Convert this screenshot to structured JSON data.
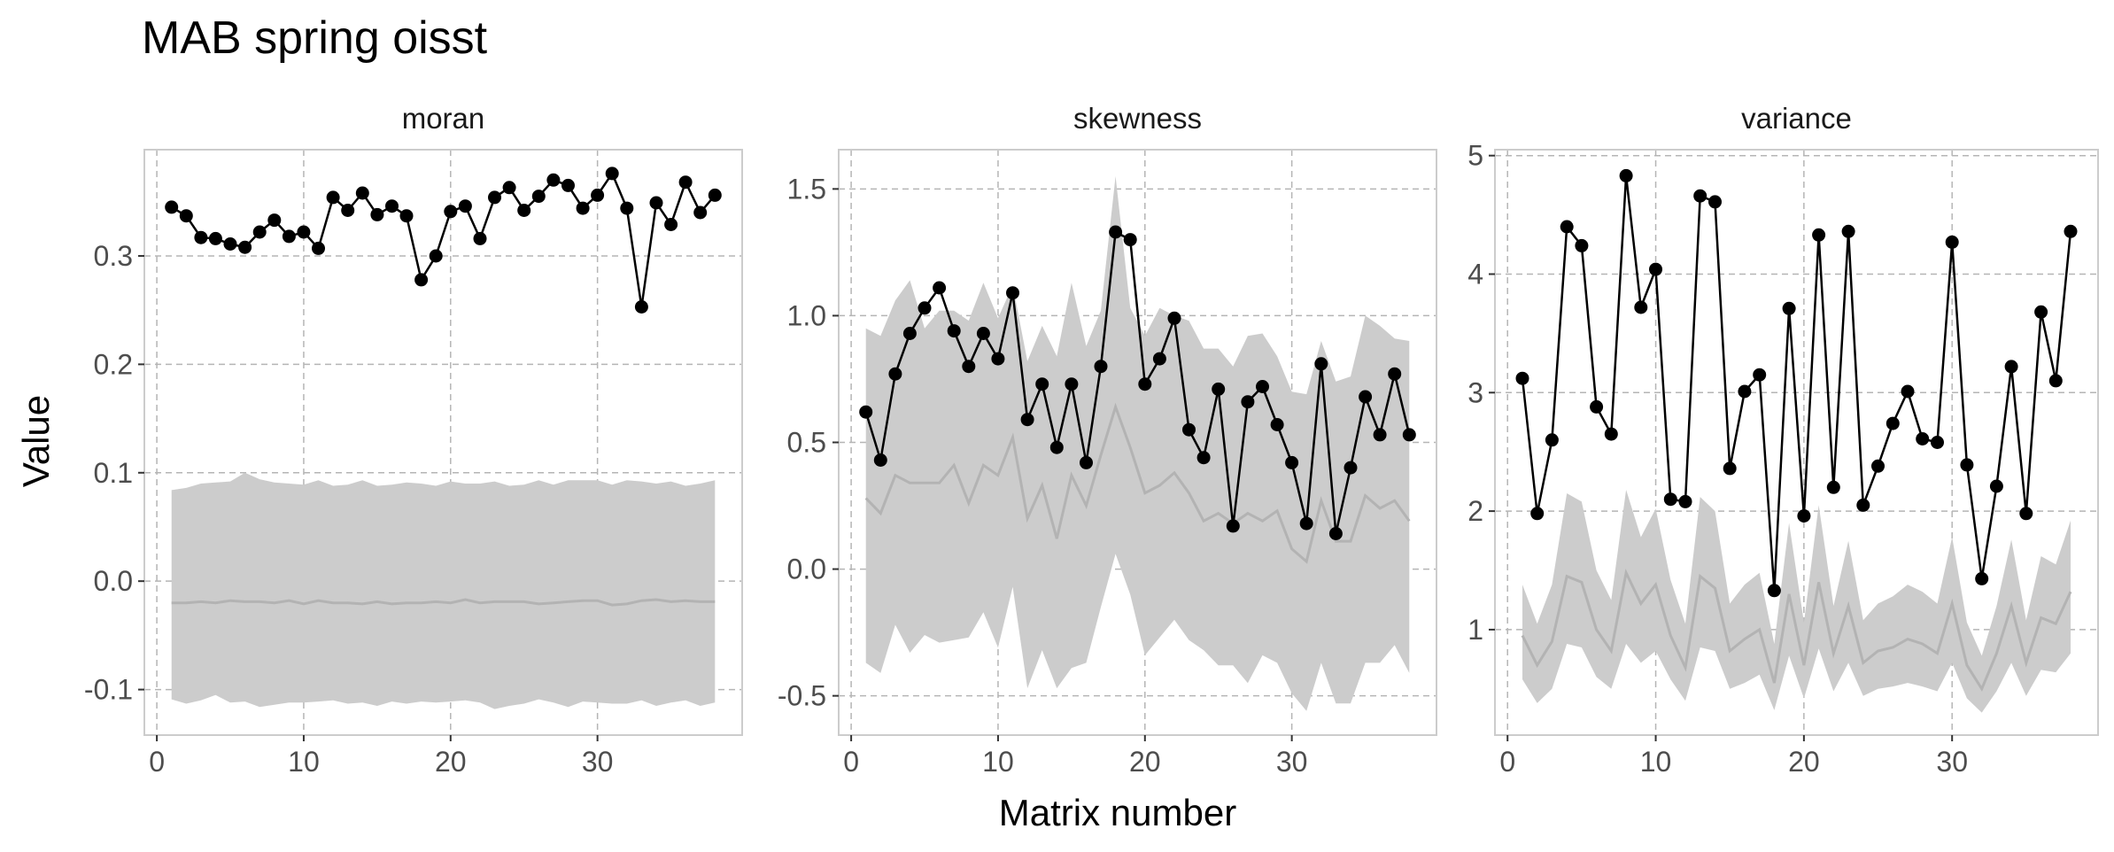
{
  "title": "MAB spring oisst",
  "xlabel": "Matrix number",
  "ylabel": "Value",
  "colors": {
    "point": "#000000",
    "line": "#000000",
    "ribbon": "#cccccc",
    "mean_line": "#b3b3b3",
    "grid": "#b5b5b5",
    "panel_border": "#cccccc",
    "tick_text": "#4d4d4d"
  },
  "chart_data": [
    {
      "type": "line",
      "panel": "moran",
      "x_ticks": [
        0,
        10,
        20,
        30
      ],
      "y_ticks": [
        -0.1,
        0.0,
        0.1,
        0.2,
        0.3
      ],
      "y_tick_labels": [
        "-0.1",
        "0.0",
        "0.1",
        "0.2",
        "0.3"
      ],
      "xlim": [
        -0.85,
        39.85
      ],
      "ylim": [
        -0.142,
        0.398
      ],
      "x": [
        1,
        2,
        3,
        4,
        5,
        6,
        7,
        8,
        9,
        10,
        11,
        12,
        13,
        14,
        15,
        16,
        17,
        18,
        19,
        20,
        21,
        22,
        23,
        24,
        25,
        26,
        27,
        28,
        29,
        30,
        31,
        32,
        33,
        34,
        35,
        36,
        37,
        38
      ],
      "observed": [
        0.345,
        0.337,
        0.317,
        0.316,
        0.311,
        0.308,
        0.322,
        0.333,
        0.318,
        0.322,
        0.307,
        0.354,
        0.342,
        0.358,
        0.338,
        0.346,
        0.337,
        0.278,
        0.3,
        0.341,
        0.346,
        0.316,
        0.354,
        0.363,
        0.342,
        0.355,
        0.37,
        0.365,
        0.344,
        0.356,
        0.376,
        0.344,
        0.253,
        0.349,
        0.329,
        0.368,
        0.34,
        0.356
      ],
      "mean": [
        -0.02,
        -0.02,
        -0.019,
        -0.02,
        -0.018,
        -0.019,
        -0.019,
        -0.02,
        -0.018,
        -0.021,
        -0.018,
        -0.02,
        -0.02,
        -0.021,
        -0.019,
        -0.021,
        -0.02,
        -0.02,
        -0.019,
        -0.02,
        -0.017,
        -0.02,
        -0.019,
        -0.019,
        -0.019,
        -0.021,
        -0.02,
        -0.019,
        -0.018,
        -0.018,
        -0.022,
        -0.021,
        -0.018,
        -0.017,
        -0.019,
        -0.018,
        -0.019,
        -0.019
      ],
      "lower": [
        -0.109,
        -0.113,
        -0.11,
        -0.105,
        -0.112,
        -0.111,
        -0.116,
        -0.114,
        -0.112,
        -0.112,
        -0.111,
        -0.11,
        -0.113,
        -0.112,
        -0.115,
        -0.111,
        -0.113,
        -0.111,
        -0.112,
        -0.111,
        -0.11,
        -0.112,
        -0.118,
        -0.115,
        -0.113,
        -0.109,
        -0.112,
        -0.116,
        -0.111,
        -0.112,
        -0.113,
        -0.113,
        -0.11,
        -0.115,
        -0.112,
        -0.11,
        -0.115,
        -0.112
      ],
      "upper": [
        0.084,
        0.086,
        0.09,
        0.091,
        0.092,
        0.1,
        0.094,
        0.091,
        0.09,
        0.089,
        0.093,
        0.088,
        0.089,
        0.093,
        0.088,
        0.089,
        0.091,
        0.09,
        0.088,
        0.092,
        0.09,
        0.09,
        0.092,
        0.088,
        0.089,
        0.093,
        0.089,
        0.093,
        0.093,
        0.093,
        0.089,
        0.093,
        0.092,
        0.09,
        0.092,
        0.088,
        0.09,
        0.093
      ]
    },
    {
      "type": "line",
      "panel": "skewness",
      "x_ticks": [
        0,
        10,
        20,
        30
      ],
      "y_ticks": [
        -0.5,
        0.0,
        0.5,
        1.0,
        1.5
      ],
      "y_tick_labels": [
        "-0.5",
        "0.0",
        "0.5",
        "1.0",
        "1.5"
      ],
      "xlim": [
        -0.85,
        39.85
      ],
      "ylim": [
        -0.655,
        1.655
      ],
      "x": [
        1,
        2,
        3,
        4,
        5,
        6,
        7,
        8,
        9,
        10,
        11,
        12,
        13,
        14,
        15,
        16,
        17,
        18,
        19,
        20,
        21,
        22,
        23,
        24,
        25,
        26,
        27,
        28,
        29,
        30,
        31,
        32,
        33,
        34,
        35,
        36,
        37,
        38
      ],
      "observed": [
        0.62,
        0.43,
        0.77,
        0.93,
        1.03,
        1.11,
        0.94,
        0.8,
        0.93,
        0.83,
        1.09,
        0.59,
        0.73,
        0.48,
        0.73,
        0.42,
        0.8,
        1.33,
        1.3,
        0.73,
        0.83,
        0.99,
        0.55,
        0.44,
        0.71,
        0.17,
        0.66,
        0.72,
        0.57,
        0.42,
        0.18,
        0.81,
        0.14,
        0.4,
        0.68,
        0.53,
        0.77,
        0.53
      ],
      "mean": [
        0.28,
        0.22,
        0.37,
        0.34,
        0.34,
        0.34,
        0.41,
        0.26,
        0.41,
        0.37,
        0.52,
        0.2,
        0.33,
        0.12,
        0.37,
        0.25,
        0.45,
        0.64,
        0.48,
        0.3,
        0.33,
        0.38,
        0.3,
        0.19,
        0.22,
        0.18,
        0.22,
        0.19,
        0.23,
        0.08,
        0.03,
        0.27,
        0.11,
        0.11,
        0.29,
        0.24,
        0.27,
        0.19
      ],
      "lower": [
        -0.37,
        -0.41,
        -0.22,
        -0.33,
        -0.26,
        -0.29,
        -0.28,
        -0.27,
        -0.17,
        -0.31,
        -0.07,
        -0.47,
        -0.32,
        -0.47,
        -0.39,
        -0.37,
        -0.15,
        0.06,
        -0.1,
        -0.34,
        -0.27,
        -0.2,
        -0.28,
        -0.32,
        -0.38,
        -0.38,
        -0.45,
        -0.34,
        -0.37,
        -0.49,
        -0.56,
        -0.37,
        -0.53,
        -0.53,
        -0.37,
        -0.37,
        -0.3,
        -0.41
      ],
      "upper": [
        0.95,
        0.92,
        1.06,
        1.14,
        0.95,
        1.02,
        1.02,
        0.98,
        1.13,
        0.99,
        1.12,
        0.82,
        0.96,
        0.84,
        1.13,
        0.88,
        1.02,
        1.55,
        1.03,
        0.92,
        1.03,
        1.0,
        0.98,
        0.87,
        0.87,
        0.8,
        0.92,
        0.93,
        0.84,
        0.7,
        0.69,
        0.9,
        0.74,
        0.76,
        1.0,
        0.96,
        0.91,
        0.9
      ]
    },
    {
      "type": "line",
      "panel": "variance",
      "x_ticks": [
        0,
        10,
        20,
        30
      ],
      "y_ticks": [
        1,
        2,
        3,
        4,
        5
      ],
      "y_tick_labels": [
        "1",
        "2",
        "3",
        "4",
        "5"
      ],
      "xlim": [
        -0.85,
        39.85
      ],
      "ylim": [
        0.11,
        5.05
      ],
      "x": [
        1,
        2,
        3,
        4,
        5,
        6,
        7,
        8,
        9,
        10,
        11,
        12,
        13,
        14,
        15,
        16,
        17,
        18,
        19,
        20,
        21,
        22,
        23,
        24,
        25,
        26,
        27,
        28,
        29,
        30,
        31,
        32,
        33,
        34,
        35,
        36,
        37,
        38
      ],
      "observed": [
        3.12,
        1.98,
        2.6,
        4.4,
        4.24,
        2.88,
        2.65,
        4.83,
        3.72,
        4.04,
        2.1,
        2.08,
        4.66,
        4.61,
        2.36,
        3.01,
        3.15,
        1.33,
        3.71,
        1.96,
        4.33,
        2.2,
        4.36,
        2.05,
        2.38,
        2.74,
        3.01,
        2.61,
        2.58,
        4.27,
        2.39,
        1.43,
        2.21,
        3.22,
        1.98,
        3.68,
        3.1,
        4.36
      ],
      "mean": [
        0.95,
        0.7,
        0.9,
        1.45,
        1.4,
        1.0,
        0.82,
        1.48,
        1.22,
        1.38,
        0.95,
        0.68,
        1.45,
        1.35,
        0.82,
        0.92,
        1.0,
        0.55,
        1.3,
        0.7,
        1.4,
        0.8,
        1.2,
        0.72,
        0.82,
        0.85,
        0.92,
        0.88,
        0.8,
        1.22,
        0.7,
        0.5,
        0.8,
        1.2,
        0.72,
        1.1,
        1.05,
        1.32
      ],
      "lower": [
        0.58,
        0.38,
        0.5,
        0.88,
        0.85,
        0.6,
        0.5,
        0.88,
        0.72,
        0.82,
        0.58,
        0.4,
        0.85,
        0.82,
        0.5,
        0.55,
        0.62,
        0.32,
        0.78,
        0.42,
        0.84,
        0.48,
        0.72,
        0.44,
        0.5,
        0.52,
        0.55,
        0.52,
        0.48,
        0.72,
        0.42,
        0.3,
        0.48,
        0.72,
        0.44,
        0.66,
        0.64,
        0.8
      ],
      "upper": [
        1.38,
        1.05,
        1.38,
        2.15,
        2.08,
        1.5,
        1.25,
        2.18,
        1.78,
        2.02,
        1.42,
        1.05,
        2.12,
        2.0,
        1.22,
        1.38,
        1.48,
        0.88,
        1.9,
        1.06,
        2.05,
        1.2,
        1.75,
        1.08,
        1.22,
        1.28,
        1.38,
        1.32,
        1.22,
        1.78,
        1.06,
        0.78,
        1.2,
        1.76,
        1.08,
        1.62,
        1.55,
        1.92
      ]
    }
  ]
}
